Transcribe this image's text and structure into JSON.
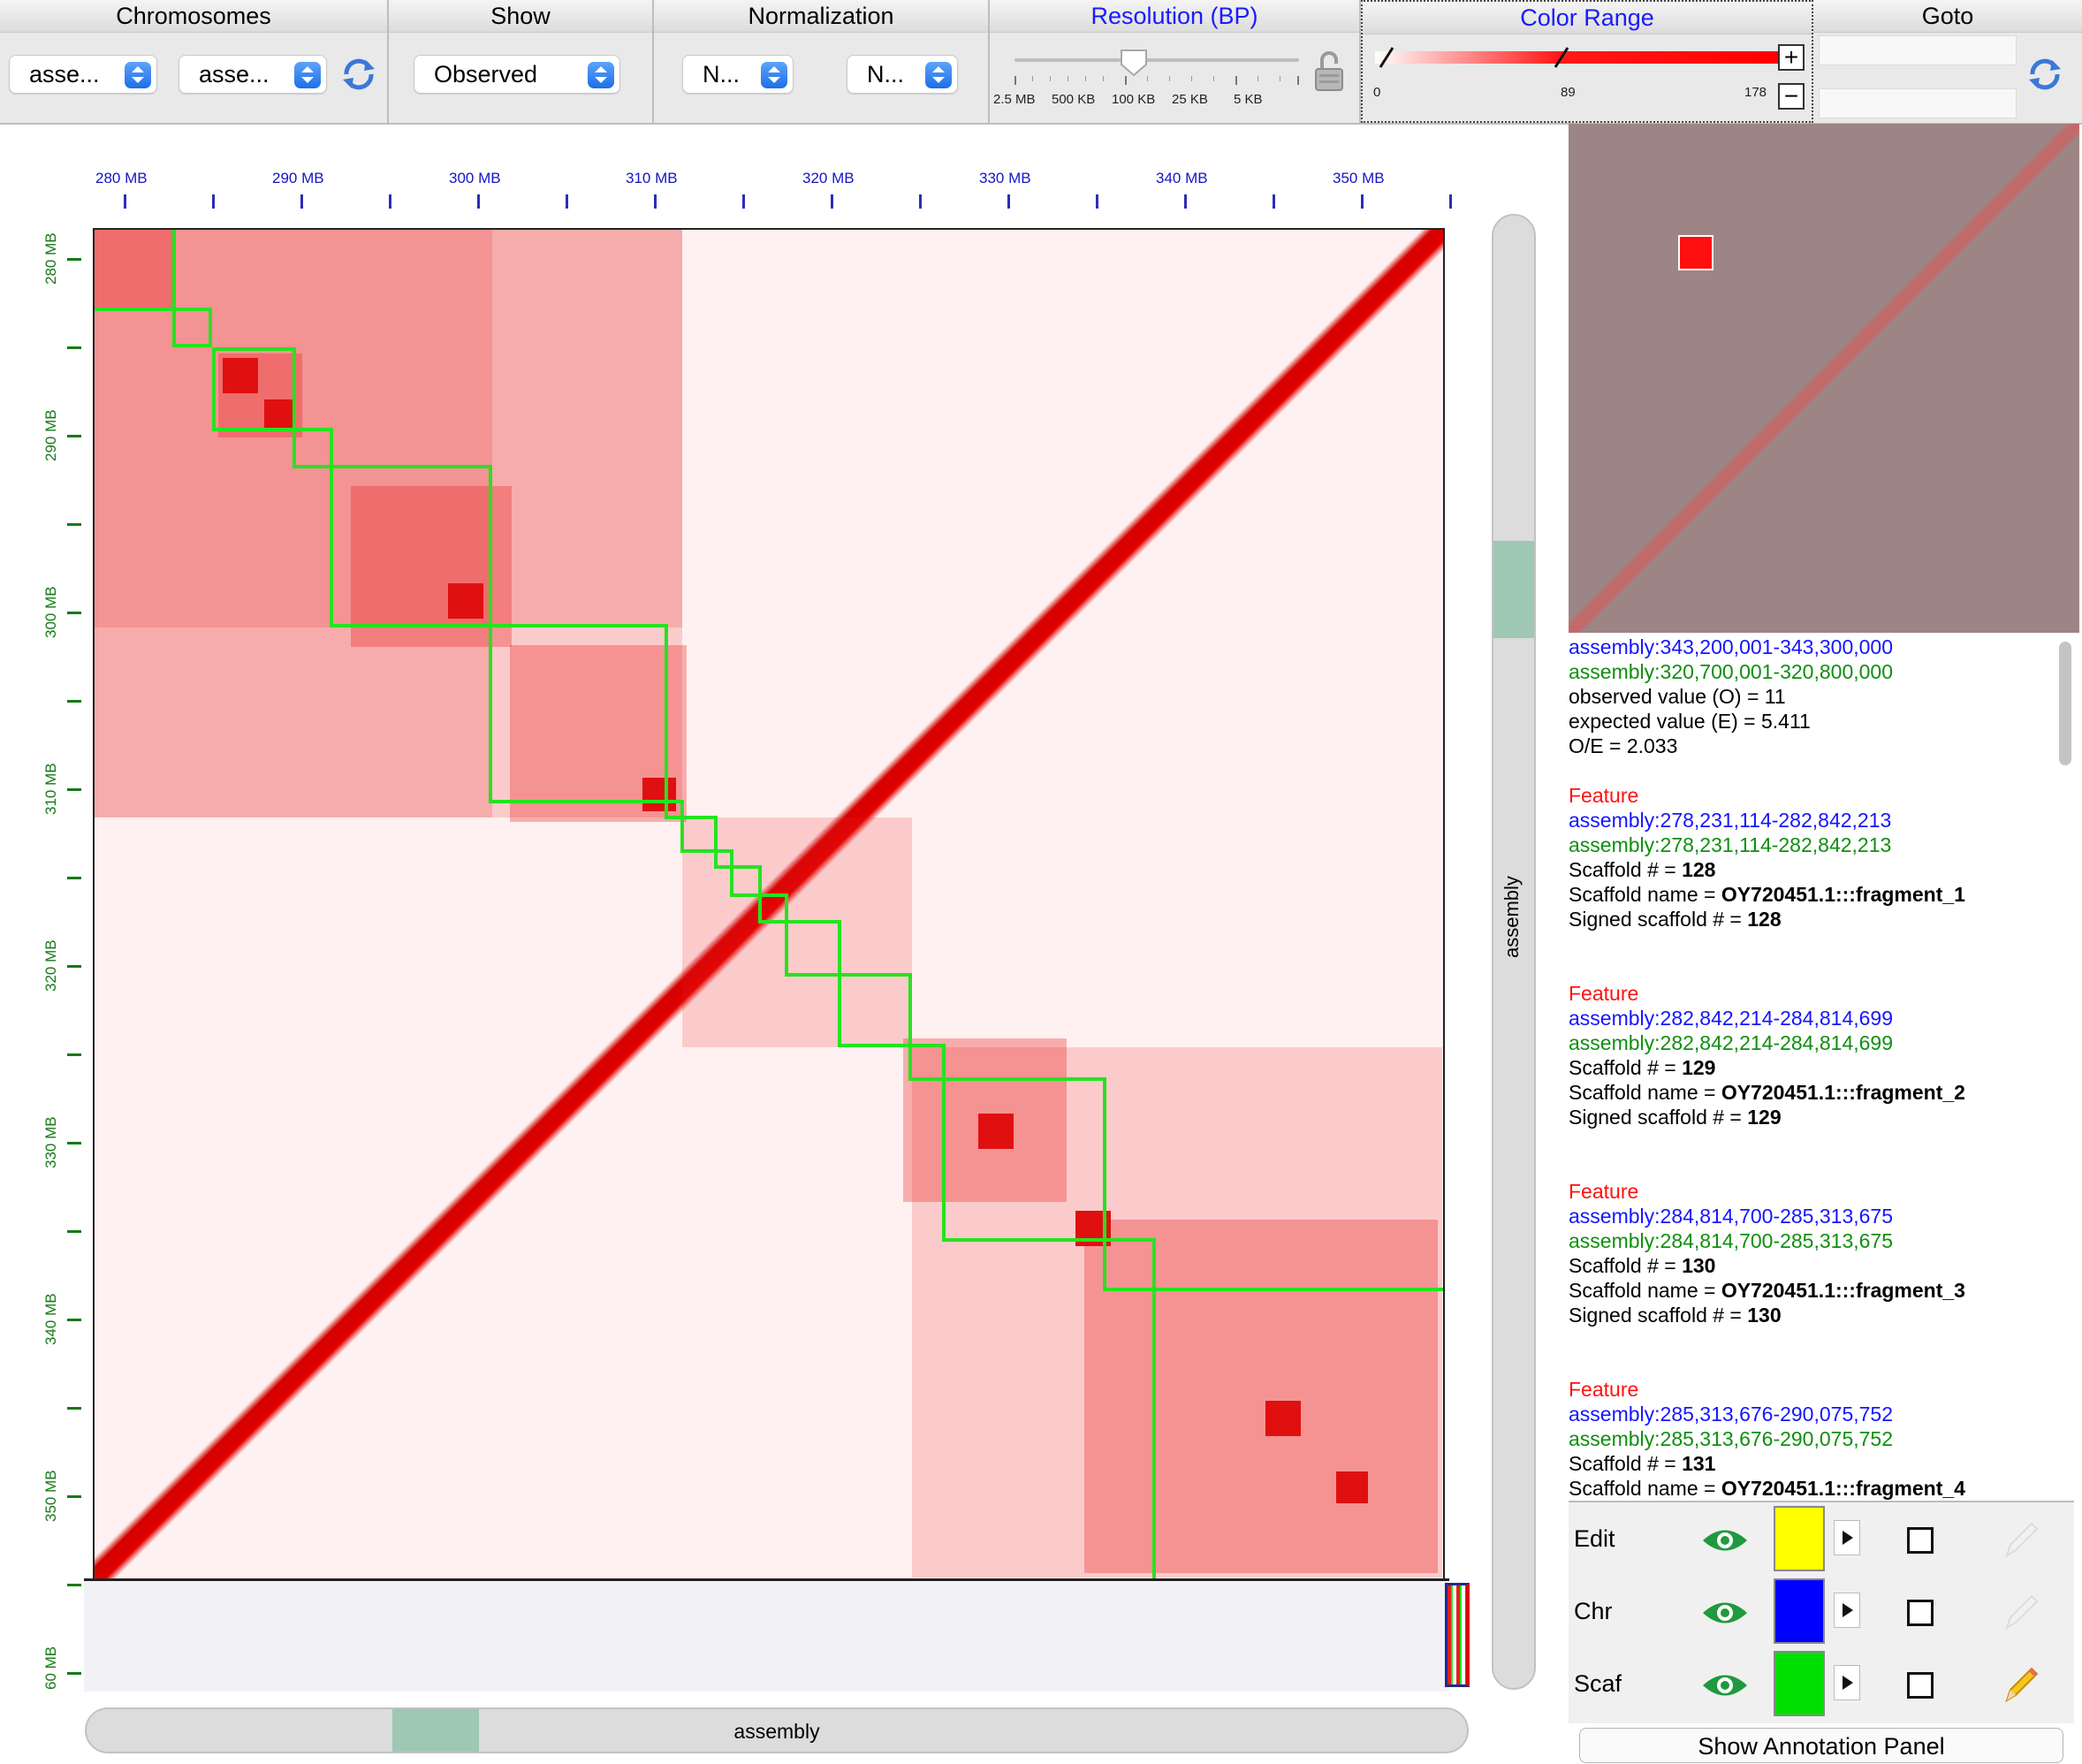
{
  "toolbar": {
    "chromosomes": {
      "title": "Chromosomes",
      "select1": "asse...",
      "select2": "asse..."
    },
    "show": {
      "title": "Show",
      "select": "Observed"
    },
    "normalization": {
      "title": "Normalization",
      "select1": "N...",
      "select2": "N..."
    },
    "resolution": {
      "title": "Resolution (BP)",
      "ticks": [
        "2.5 MB",
        "500 KB",
        "100 KB",
        "25 KB",
        "5 KB"
      ],
      "selected_index": 2
    },
    "color_range": {
      "title": "Color Range",
      "min": "0",
      "mid": "89",
      "max": "178",
      "plus": "+",
      "minus": "−"
    },
    "goto": {
      "title": "Goto",
      "field1": "",
      "field2": ""
    },
    "colors": {
      "accent_blue": "#1a1aff",
      "stepper": "#1d6fe8"
    }
  },
  "map": {
    "x_ticks": [
      "280 MB",
      "290 MB",
      "300 MB",
      "310 MB",
      "320 MB",
      "330 MB",
      "340 MB",
      "350 MB"
    ],
    "y_ticks": [
      "280 MB",
      "290 MB",
      "300 MB",
      "310 MB",
      "320 MB",
      "330 MB",
      "340 MB",
      "350 MB",
      "60 MB"
    ],
    "heat_color": "#e01010",
    "box_color": "#26e21f"
  },
  "scrollbars": {
    "vertical_label": "assembly",
    "horizontal_label": "assembly"
  },
  "info": {
    "hover": {
      "x_coord": "assembly:343,200,001-343,300,000",
      "y_coord": "assembly:320,700,001-320,800,000",
      "observed": "observed value (O) = 11",
      "expected": "expected value (E) = 5.411",
      "oe": "O/E = 2.033"
    },
    "features": [
      {
        "title": "Feature",
        "x": "assembly:278,231,114-282,842,213",
        "y": "assembly:278,231,114-282,842,213",
        "scaffold_num_label": "Scaffold # = ",
        "scaffold_num": "128",
        "scaffold_name_label": "Scaffold name = ",
        "scaffold_name": "OY720451.1:::fragment_1",
        "signed_label": "Signed scaffold # = ",
        "signed": "128"
      },
      {
        "title": "Feature",
        "x": "assembly:282,842,214-284,814,699",
        "y": "assembly:282,842,214-284,814,699",
        "scaffold_num_label": "Scaffold # = ",
        "scaffold_num": "129",
        "scaffold_name_label": "Scaffold name = ",
        "scaffold_name": "OY720451.1:::fragment_2",
        "signed_label": "Signed scaffold # = ",
        "signed": "129"
      },
      {
        "title": "Feature",
        "x": "assembly:284,814,700-285,313,675",
        "y": "assembly:284,814,700-285,313,675",
        "scaffold_num_label": "Scaffold # = ",
        "scaffold_num": "130",
        "scaffold_name_label": "Scaffold name = ",
        "scaffold_name": "OY720451.1:::fragment_3",
        "signed_label": "Signed scaffold # = ",
        "signed": "130"
      },
      {
        "title": "Feature",
        "x": "assembly:285,313,676-290,075,752",
        "y": "assembly:285,313,676-290,075,752",
        "scaffold_num_label": "Scaffold # = ",
        "scaffold_num": "131",
        "scaffold_name_label": "Scaffold name = ",
        "scaffold_name": "OY720451.1:::fragment_4"
      }
    ]
  },
  "layers": [
    {
      "name": "Edit",
      "color": "#ffff00",
      "icon": "pencil-disabled-icon"
    },
    {
      "name": "Chr",
      "color": "#0000ff",
      "icon": "pencil-disabled-icon"
    },
    {
      "name": "Scaf",
      "color": "#00e000",
      "icon": "pencil-icon"
    }
  ],
  "annotation_button": "Show Annotation Panel"
}
